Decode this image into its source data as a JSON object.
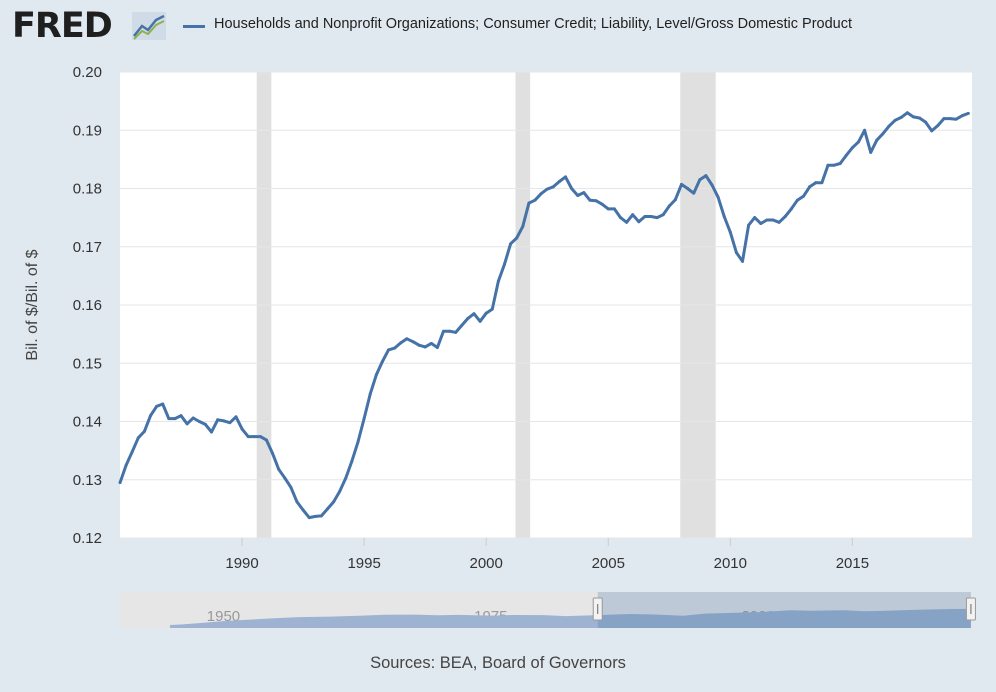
{
  "header": {
    "logo_text": "FRED",
    "legend_label": "Households and Nonprofit Organizations; Consumer Credit; Liability, Level/Gross Domestic Product"
  },
  "footer": {
    "sources": "Sources: BEA, Board of Governors"
  },
  "colors": {
    "series": "#4572a7",
    "recession": "#e0e0e0",
    "background": "#e1e9f0",
    "navigator_fill": "#7f9fcc"
  },
  "icons": {
    "logo_chart": "trend-line-icon",
    "handle": "grip-handle-icon"
  },
  "chart_data": {
    "type": "line",
    "title": "",
    "xlabel": "",
    "ylabel": "Bil. of $/Bil. of $",
    "xlim": [
      1985.0,
      2019.9
    ],
    "ylim": [
      0.12,
      0.2
    ],
    "yticks": [
      "0.12",
      "0.13",
      "0.14",
      "0.15",
      "0.16",
      "0.17",
      "0.18",
      "0.19",
      "0.20"
    ],
    "xticks": [
      "1990",
      "1995",
      "2000",
      "2005",
      "2010",
      "2015"
    ],
    "recessions": [
      [
        1990.6,
        1991.2
      ],
      [
        2001.2,
        2001.8
      ],
      [
        2007.95,
        2009.4
      ]
    ],
    "series": [
      {
        "name": "Households and Nonprofit Organizations; Consumer Credit; Liability, Level/Gross Domestic Product",
        "x": [
          1985.0,
          1985.25,
          1985.5,
          1985.75,
          1986.0,
          1986.25,
          1986.5,
          1986.75,
          1987.0,
          1987.25,
          1987.5,
          1987.75,
          1988.0,
          1988.25,
          1988.5,
          1988.75,
          1989.0,
          1989.25,
          1989.5,
          1989.75,
          1990.0,
          1990.25,
          1990.5,
          1990.75,
          1991.0,
          1991.25,
          1991.5,
          1991.75,
          1992.0,
          1992.25,
          1992.5,
          1992.75,
          1993.0,
          1993.25,
          1993.5,
          1993.75,
          1994.0,
          1994.25,
          1994.5,
          1994.75,
          1995.0,
          1995.25,
          1995.5,
          1995.75,
          1996.0,
          1996.25,
          1996.5,
          1996.75,
          1997.0,
          1997.25,
          1997.5,
          1997.75,
          1998.0,
          1998.25,
          1998.5,
          1998.75,
          1999.0,
          1999.25,
          1999.5,
          1999.75,
          2000.0,
          2000.25,
          2000.5,
          2000.75,
          2001.0,
          2001.25,
          2001.5,
          2001.75,
          2002.0,
          2002.25,
          2002.5,
          2002.75,
          2003.0,
          2003.25,
          2003.5,
          2003.75,
          2004.0,
          2004.25,
          2004.5,
          2004.75,
          2005.0,
          2005.25,
          2005.5,
          2005.75,
          2006.0,
          2006.25,
          2006.5,
          2006.75,
          2007.0,
          2007.25,
          2007.5,
          2007.75,
          2008.0,
          2008.25,
          2008.5,
          2008.75,
          2009.0,
          2009.25,
          2009.5,
          2009.75,
          2010.0,
          2010.25,
          2010.5,
          2010.75,
          2011.0,
          2011.25,
          2011.5,
          2011.75,
          2012.0,
          2012.25,
          2012.5,
          2012.75,
          2013.0,
          2013.25,
          2013.5,
          2013.75,
          2014.0,
          2014.25,
          2014.5,
          2014.75,
          2015.0,
          2015.25,
          2015.5,
          2015.75,
          2016.0,
          2016.25,
          2016.5,
          2016.75,
          2017.0,
          2017.25,
          2017.5,
          2017.75,
          2018.0,
          2018.25,
          2018.5,
          2018.75,
          2019.0,
          2019.25,
          2019.5,
          2019.75
        ],
        "values": [
          0.1295,
          0.1325,
          0.1348,
          0.1372,
          0.1383,
          0.141,
          0.1426,
          0.143,
          0.1405,
          0.1405,
          0.141,
          0.1396,
          0.1406,
          0.14,
          0.1395,
          0.1382,
          0.1403,
          0.1401,
          0.1398,
          0.1408,
          0.1387,
          0.1374,
          0.1374,
          0.1374,
          0.1368,
          0.1345,
          0.1318,
          0.1303,
          0.1287,
          0.1262,
          0.1248,
          0.1235,
          0.1237,
          0.1238,
          0.125,
          0.1262,
          0.128,
          0.1303,
          0.1332,
          0.1365,
          0.1405,
          0.1447,
          0.148,
          0.1503,
          0.1523,
          0.1526,
          0.1535,
          0.1542,
          0.1537,
          0.1531,
          0.1528,
          0.1534,
          0.1527,
          0.1555,
          0.1555,
          0.1553,
          0.1565,
          0.1577,
          0.1585,
          0.1572,
          0.1586,
          0.1593,
          0.1641,
          0.167,
          0.1705,
          0.1715,
          0.1735,
          0.1775,
          0.178,
          0.1791,
          0.1799,
          0.1803,
          0.1812,
          0.182,
          0.18,
          0.1788,
          0.1793,
          0.178,
          0.1779,
          0.1773,
          0.1765,
          0.1765,
          0.175,
          0.1742,
          0.1755,
          0.1743,
          0.1752,
          0.1752,
          0.175,
          0.1755,
          0.177,
          0.1781,
          0.1807,
          0.18,
          0.1792,
          0.1815,
          0.1822,
          0.1806,
          0.1785,
          0.1752,
          0.1725,
          0.169,
          0.1675,
          0.1737,
          0.175,
          0.174,
          0.1746,
          0.1746,
          0.1742,
          0.1752,
          0.1765,
          0.178,
          0.1787,
          0.1803,
          0.181,
          0.181,
          0.184,
          0.184,
          0.1843,
          0.1857,
          0.187,
          0.188,
          0.19,
          0.1862,
          0.1883,
          0.1894,
          0.1907,
          0.1917,
          0.1922,
          0.193,
          0.1923,
          0.1921,
          0.1914,
          0.1899,
          0.1908,
          0.192,
          0.192,
          0.1919,
          0.1925,
          0.1929
        ]
      }
    ],
    "navigator": {
      "xlim": [
        1945,
        2020
      ],
      "labels": [
        "1950",
        "1975",
        "2000"
      ],
      "selected_range": [
        1985,
        2019.9
      ],
      "x": [
        1945,
        1946,
        1948,
        1950,
        1952,
        1955,
        1957,
        1960,
        1963,
        1965,
        1968,
        1970,
        1972,
        1975,
        1977,
        1980,
        1982,
        1985,
        1988,
        1990,
        1993,
        1995,
        1998,
        2000,
        2003,
        2005,
        2008,
        2010,
        2012,
        2015,
        2018,
        2019.9
      ],
      "values": [
        0.03,
        0.035,
        0.052,
        0.07,
        0.082,
        0.1,
        0.11,
        0.115,
        0.125,
        0.133,
        0.135,
        0.128,
        0.132,
        0.125,
        0.131,
        0.13,
        0.12,
        0.13,
        0.141,
        0.137,
        0.124,
        0.145,
        0.155,
        0.16,
        0.18,
        0.175,
        0.18,
        0.17,
        0.175,
        0.185,
        0.192,
        0.193
      ],
      "ylim": [
        0,
        0.2
      ]
    }
  }
}
